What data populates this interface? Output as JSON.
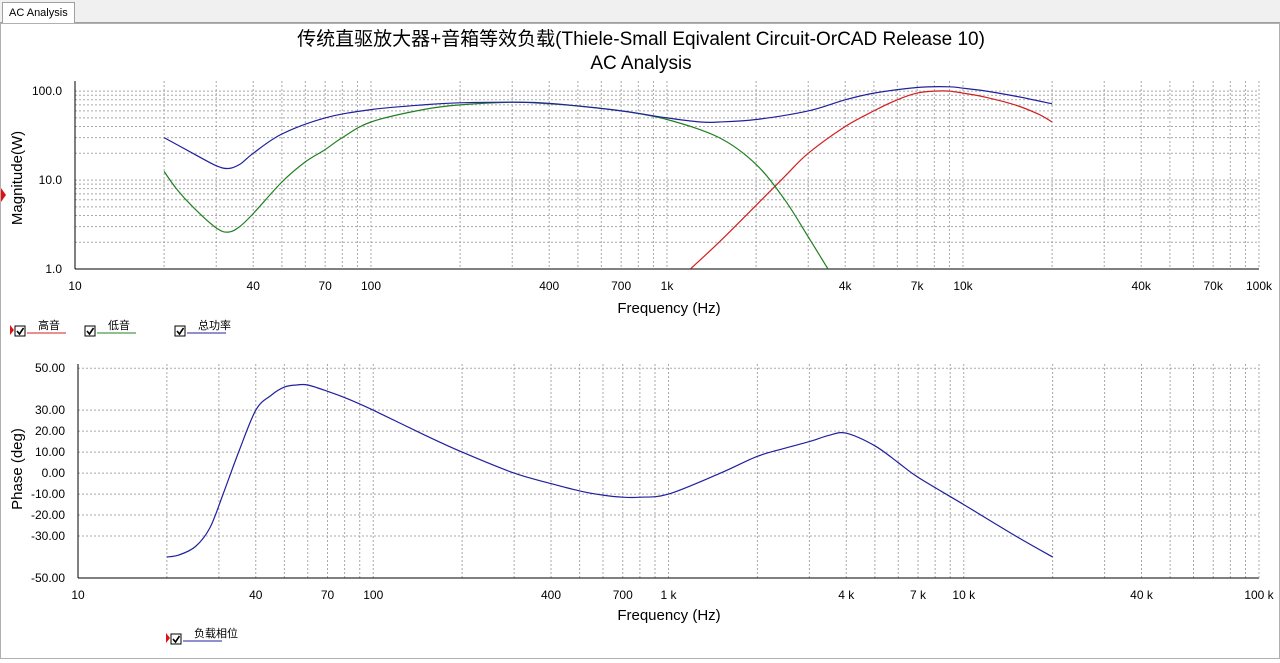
{
  "tab": {
    "label": "AC Analysis"
  },
  "header": {
    "title_line1": "传统直驱放大器+音箱等效负载(Thiele-Small Eqivalent Circuit-OrCAD Release 10)",
    "title_line2": "AC Analysis"
  },
  "chart_data": [
    {
      "type": "line",
      "x_scale": "log",
      "y_scale": "log",
      "xlim": [
        10,
        100000
      ],
      "ylim": [
        1,
        130
      ],
      "xlabel": "Frequency (Hz)",
      "ylabel": "Magnitude(W)",
      "x_ticks": [
        {
          "v": 10,
          "label": "10"
        },
        {
          "v": 40,
          "label": "40"
        },
        {
          "v": 70,
          "label": "70"
        },
        {
          "v": 100,
          "label": "100"
        },
        {
          "v": 400,
          "label": "400"
        },
        {
          "v": 700,
          "label": "700"
        },
        {
          "v": 1000,
          "label": "1k"
        },
        {
          "v": 4000,
          "label": "4k"
        },
        {
          "v": 7000,
          "label": "7k"
        },
        {
          "v": 10000,
          "label": "10k"
        },
        {
          "v": 40000,
          "label": "40k"
        },
        {
          "v": 70000,
          "label": "70k"
        },
        {
          "v": 100000,
          "label": "100k"
        }
      ],
      "y_ticks": [
        {
          "v": 1,
          "label": "1.0"
        },
        {
          "v": 10,
          "label": "10.0"
        },
        {
          "v": 100,
          "label": "100.0"
        }
      ],
      "grid": true,
      "legend_position": "bottom-left",
      "series": [
        {
          "name": "高音",
          "color": "#d02020",
          "x": [
            1200,
            1500,
            2000,
            2500,
            3000,
            4000,
            5000,
            6000,
            7000,
            8000,
            9000,
            10000,
            12000,
            15000,
            18000,
            20000
          ],
          "y": [
            1.0,
            2.0,
            5.2,
            11,
            20,
            40,
            60,
            80,
            95,
            100,
            100,
            95,
            85,
            70,
            55,
            45
          ]
        },
        {
          "name": "低音",
          "color": "#208020",
          "x": [
            20,
            22,
            25,
            30,
            33,
            36,
            40,
            50,
            60,
            70,
            80,
            100,
            150,
            200,
            300,
            400,
            500,
            700,
            1000,
            1500,
            2000,
            2500,
            3000,
            3500
          ],
          "y": [
            12.5,
            8,
            5,
            2.9,
            2.6,
            3.0,
            4.2,
            9.5,
            16,
            22,
            30,
            45,
            62,
            70,
            75,
            72,
            68,
            60,
            48,
            30,
            15,
            6,
            2.3,
            1.0
          ]
        },
        {
          "name": "总功率",
          "color": "#2020a0",
          "x": [
            20,
            25,
            30,
            33,
            36,
            40,
            50,
            70,
            100,
            150,
            200,
            300,
            400,
            700,
            1000,
            1300,
            1500,
            2000,
            3000,
            4000,
            5000,
            7000,
            9000,
            10000,
            12000,
            15000,
            20000
          ],
          "y": [
            30,
            20,
            14.5,
            13.5,
            15,
            20,
            33,
            50,
            62,
            70,
            74,
            75,
            73,
            60,
            50,
            45,
            45,
            48,
            60,
            80,
            95,
            110,
            112,
            108,
            100,
            88,
            72
          ]
        }
      ]
    },
    {
      "type": "line",
      "x_scale": "log",
      "y_scale": "linear",
      "xlim": [
        10,
        100000
      ],
      "ylim": [
        -50,
        52
      ],
      "xlabel": "Frequency (Hz)",
      "ylabel": "Phase (deg)",
      "x_ticks": [
        {
          "v": 10,
          "label": "10"
        },
        {
          "v": 40,
          "label": "40"
        },
        {
          "v": 70,
          "label": "70"
        },
        {
          "v": 100,
          "label": "100"
        },
        {
          "v": 400,
          "label": "400"
        },
        {
          "v": 700,
          "label": "700"
        },
        {
          "v": 1000,
          "label": "1 k"
        },
        {
          "v": 4000,
          "label": "4 k"
        },
        {
          "v": 7000,
          "label": "7 k"
        },
        {
          "v": 10000,
          "label": "10 k"
        },
        {
          "v": 40000,
          "label": "40 k"
        },
        {
          "v": 100000,
          "label": "100 k"
        }
      ],
      "y_ticks": [
        {
          "v": 50,
          "label": "50.00"
        },
        {
          "v": 30,
          "label": "30.00"
        },
        {
          "v": 20,
          "label": "20.00"
        },
        {
          "v": 10,
          "label": "10.00"
        },
        {
          "v": 0,
          "label": "0.00"
        },
        {
          "v": -10,
          "label": "-10.00"
        },
        {
          "v": -20,
          "label": "-20.00"
        },
        {
          "v": -30,
          "label": "-30.00"
        },
        {
          "v": -50,
          "label": "-50.00"
        }
      ],
      "grid": true,
      "legend_position": "bottom-left",
      "series": [
        {
          "name": "负载相位",
          "color": "#2020a0",
          "x": [
            20,
            22,
            25,
            28,
            31,
            35,
            40,
            45,
            50,
            55,
            60,
            70,
            80,
            100,
            150,
            200,
            300,
            400,
            500,
            600,
            700,
            800,
            1000,
            1500,
            2000,
            2500,
            3000,
            3500,
            4000,
            5000,
            6000,
            7000,
            10000,
            15000,
            20000
          ],
          "y": [
            -40,
            -39,
            -35,
            -26,
            -10,
            10,
            30,
            37,
            41,
            42,
            42,
            39,
            36,
            30,
            18,
            10,
            0,
            -5,
            -8.5,
            -10.5,
            -11.5,
            -11.5,
            -10,
            0,
            8,
            12,
            15,
            18,
            19,
            13,
            5,
            -2,
            -15,
            -30,
            -40
          ]
        }
      ]
    }
  ]
}
